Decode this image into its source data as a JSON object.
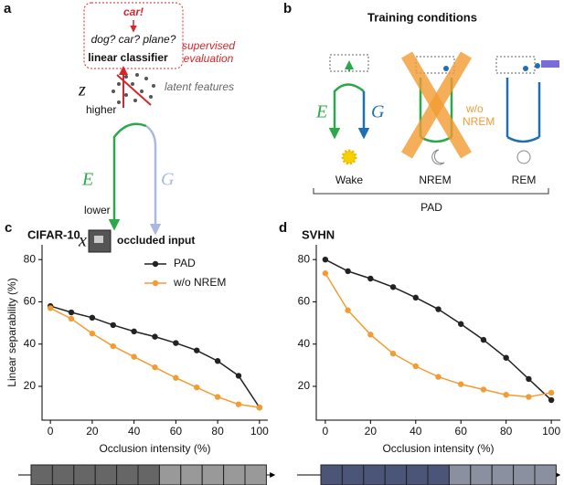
{
  "diagram_a": {
    "panel": "a",
    "output": "car!",
    "choices": "dog? car? plane?",
    "evaluation": [
      "supervised",
      "evaluation"
    ],
    "classifier": "linear classifier",
    "latent_symbol": "z",
    "latent_label": "latent features",
    "higher": "higher",
    "encoder": "E",
    "generator": "G",
    "lower": "lower",
    "input_symbol": "x",
    "input_label": "occluded input"
  },
  "diagram_b": {
    "panel": "b",
    "title": "Training conditions",
    "encoder": "E",
    "generator": "G",
    "crossed": [
      "w/o",
      "NREM"
    ],
    "conditions": [
      "Wake",
      "NREM",
      "REM"
    ],
    "group": "PAD"
  },
  "chart_data": [
    {
      "type": "line",
      "panel": "c",
      "title": "CIFAR-10",
      "x_label": "Occlusion intensity (%)",
      "y_label": "Linear separability (%)",
      "legend": "upper right",
      "x": [
        0,
        10,
        20,
        30,
        40,
        50,
        60,
        70,
        80,
        90,
        100
      ],
      "series": [
        {
          "name": "PAD",
          "color": "#222222",
          "values": [
            58,
            55,
            52.5,
            49,
            46,
            43.5,
            40.5,
            37,
            32,
            25,
            10
          ]
        },
        {
          "name": "w/o NREM",
          "color": "#f39c33",
          "values": [
            57,
            52,
            45,
            39,
            34,
            29,
            24,
            19.5,
            15,
            11.5,
            10
          ]
        }
      ],
      "xlim": [
        -4,
        104
      ],
      "ylim": [
        4,
        87
      ],
      "xticks": [
        0,
        20,
        40,
        60,
        80,
        100
      ],
      "yticks": [
        20,
        40,
        60,
        80
      ]
    },
    {
      "type": "line",
      "panel": "d",
      "title": "SVHN",
      "x_label": "Occlusion intensity (%)",
      "x": [
        0,
        10,
        20,
        30,
        40,
        50,
        60,
        70,
        80,
        90,
        100
      ],
      "series": [
        {
          "color": "#222222",
          "values": [
            80,
            74.5,
            71,
            67,
            62,
            56.5,
            49.5,
            42,
            33.5,
            23.5,
            13.5
          ]
        },
        {
          "color": "#f39c33",
          "values": [
            73.5,
            56,
            44.5,
            35.5,
            29.5,
            24.5,
            21,
            18.5,
            16,
            15,
            17
          ]
        }
      ],
      "xlim": [
        -4,
        104
      ],
      "ylim": [
        4,
        87
      ],
      "xticks": [
        0,
        20,
        40,
        60,
        80,
        100
      ],
      "yticks": [
        20,
        40,
        60,
        80
      ]
    }
  ]
}
